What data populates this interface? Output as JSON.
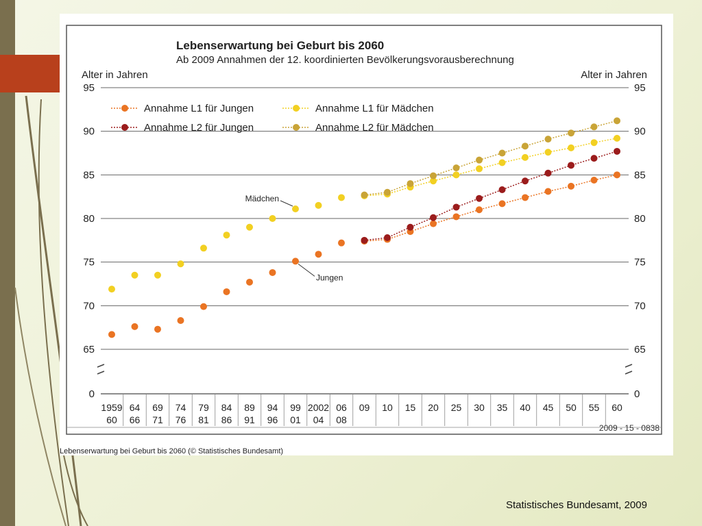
{
  "caption": "Lebenserwartung bei Geburt bis 2060 (© Statistisches Bundesamt)",
  "footer": "Statistisches Bundesamt, 2009",
  "chart_data": {
    "type": "scatter",
    "title": "Lebenserwartung bei Geburt bis 2060",
    "subtitle": "Ab 2009 Annahmen der 12. koordinierten Bevölkerungsvorausberechnung",
    "ylabel_left": "Alter in Jahren",
    "ylabel_right": "Alter in Jahren",
    "code": "2009 - 15 - 0838",
    "y_ticks": [
      0,
      65,
      70,
      75,
      80,
      85,
      90,
      95
    ],
    "y_break": "zwischen 0 und 65",
    "ylim": [
      65,
      95
    ],
    "grid": true,
    "legend_position": "top-left",
    "x_labels": [
      {
        "top": "1959",
        "bottom": "60"
      },
      {
        "top": "64",
        "bottom": "66"
      },
      {
        "top": "69",
        "bottom": "71"
      },
      {
        "top": "74",
        "bottom": "76"
      },
      {
        "top": "79",
        "bottom": "81"
      },
      {
        "top": "84",
        "bottom": "86"
      },
      {
        "top": "89",
        "bottom": "91"
      },
      {
        "top": "94",
        "bottom": "96"
      },
      {
        "top": "99",
        "bottom": "01"
      },
      {
        "top": "2002",
        "bottom": "04"
      },
      {
        "top": "06",
        "bottom": "08"
      },
      {
        "top": "09",
        "bottom": ""
      },
      {
        "top": "10",
        "bottom": ""
      },
      {
        "top": "15",
        "bottom": ""
      },
      {
        "top": "20",
        "bottom": ""
      },
      {
        "top": "25",
        "bottom": ""
      },
      {
        "top": "30",
        "bottom": ""
      },
      {
        "top": "35",
        "bottom": ""
      },
      {
        "top": "40",
        "bottom": ""
      },
      {
        "top": "45",
        "bottom": ""
      },
      {
        "top": "50",
        "bottom": ""
      },
      {
        "top": "55",
        "bottom": ""
      },
      {
        "top": "60",
        "bottom": ""
      }
    ],
    "historical": [
      {
        "name": "Mädchen",
        "color": "#f2d022",
        "values": [
          71.9,
          73.5,
          73.5,
          74.8,
          76.6,
          78.1,
          79.0,
          80.0,
          81.1,
          81.5,
          82.4
        ]
      },
      {
        "name": "Jungen",
        "color": "#ea7423",
        "values": [
          66.7,
          67.6,
          67.3,
          68.3,
          69.9,
          71.6,
          72.7,
          73.8,
          75.1,
          75.9,
          77.2
        ]
      }
    ],
    "series": [
      {
        "name": "Annahme L1 für Jungen",
        "color": "#ea7423",
        "values": [
          77.4,
          77.6,
          78.5,
          79.4,
          80.2,
          81.0,
          81.7,
          82.4,
          83.1,
          83.7,
          84.4,
          85.0
        ]
      },
      {
        "name": "Annahme L1 für Mädchen",
        "color": "#f2d022",
        "values": [
          82.6,
          82.8,
          83.6,
          84.3,
          85.0,
          85.7,
          86.4,
          87.0,
          87.6,
          88.1,
          88.7,
          89.2
        ]
      },
      {
        "name": "Annahme L2 für Jungen",
        "color": "#9b1c1c",
        "values": [
          77.5,
          77.8,
          79.0,
          80.1,
          81.3,
          82.3,
          83.3,
          84.3,
          85.2,
          86.1,
          86.9,
          87.7
        ]
      },
      {
        "name": "Annahme L2 für Mädchen",
        "color": "#c9a437",
        "values": [
          82.7,
          83.0,
          84.0,
          84.9,
          85.8,
          86.7,
          87.5,
          88.3,
          89.1,
          89.8,
          90.5,
          91.2
        ]
      }
    ],
    "annotations": [
      {
        "text": "Mädchen",
        "target_series": "Mädchen",
        "target_index": 8
      },
      {
        "text": "Jungen",
        "target_series": "Jungen",
        "target_index": 8
      }
    ]
  }
}
